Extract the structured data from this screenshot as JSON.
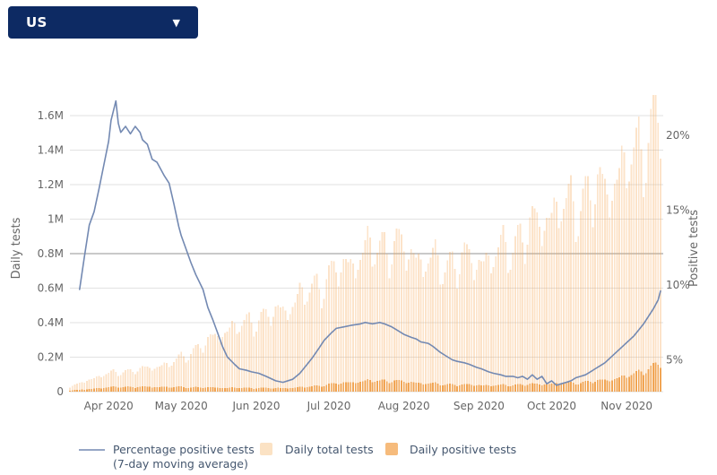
{
  "dropdown": {
    "value": "US"
  },
  "colors": {
    "navy": "#0d2a63",
    "line": "#7389b2",
    "bar_total": "#f7a758",
    "bar_total_opacity": 0.32,
    "bar_positive": "#ee9537",
    "bar_positive_opacity": 0.8,
    "legend_total_swatch": "#fbe2c4",
    "legend_positive_swatch": "#f6bb7c",
    "axis_text": "#666666",
    "legend_text": "#45576f",
    "grid": "#e2e2e2",
    "grid_emphasis": "#c9c9c9"
  },
  "legend": {
    "line_label_1": "Percentage positive tests",
    "line_label_2": "(7-day moving average)",
    "total_label": "Daily total tests",
    "positive_label": "Daily positive tests"
  },
  "chart_data": {
    "type": "combo",
    "x": {
      "start": "2020-03-16",
      "end": "2020-11-15",
      "total_days": 245,
      "tick_labels": [
        "Apr 2020",
        "May 2020",
        "Jun 2020",
        "Jul 2020",
        "Aug 2020",
        "Sep 2020",
        "Oct 2020",
        "Nov 2020"
      ],
      "tick_day_offsets": [
        16,
        46,
        77,
        107,
        138,
        169,
        199,
        230
      ]
    },
    "left_axis": {
      "label": "Daily tests",
      "tick_labels": [
        "0",
        "0.2M",
        "0.4M",
        "0.6M",
        "0.8M",
        "1M",
        "1.2M",
        "1.4M",
        "1.6M"
      ],
      "tick_values_millions": [
        0,
        0.2,
        0.4,
        0.6,
        0.8,
        1.0,
        1.2,
        1.4,
        1.6
      ],
      "range_millions": [
        0,
        1.75
      ]
    },
    "right_axis": {
      "label": "Positive tests",
      "tick_labels": [
        "5%",
        "10%",
        "15%",
        "20%"
      ],
      "tick_values_pct": [
        5,
        10,
        15,
        20
      ],
      "range_pct": [
        2.9,
        23
      ]
    },
    "grid": {
      "emphasis_value_millions": 0.8
    },
    "weekly_pattern": [
      0.9,
      1.0,
      1.05,
      1.08,
      1.1,
      1.0,
      0.84
    ],
    "series": [
      {
        "name": "Daily total tests",
        "type": "bar",
        "sampling": "weekly-anchor-millions-from-2020-03-16",
        "values": [
          0.025,
          0.065,
          0.1,
          0.115,
          0.125,
          0.145,
          0.165,
          0.22,
          0.28,
          0.35,
          0.38,
          0.42,
          0.45,
          0.5,
          0.58,
          0.64,
          0.72,
          0.78,
          0.84,
          0.85,
          0.81,
          0.76,
          0.73,
          0.76,
          0.76,
          0.78,
          0.85,
          0.92,
          1.02,
          1.06,
          1.1,
          1.15,
          1.22,
          1.32,
          1.47,
          1.62
        ]
      },
      {
        "name": "Daily positive tests",
        "type": "bar",
        "sampling": "weekly-anchor-millions-from-2020-03-16",
        "values": [
          0.006,
          0.014,
          0.022,
          0.028,
          0.027,
          0.028,
          0.027,
          0.026,
          0.024,
          0.023,
          0.022,
          0.021,
          0.02,
          0.022,
          0.028,
          0.038,
          0.05,
          0.058,
          0.064,
          0.063,
          0.056,
          0.048,
          0.043,
          0.04,
          0.039,
          0.036,
          0.038,
          0.042,
          0.045,
          0.047,
          0.052,
          0.06,
          0.072,
          0.093,
          0.128,
          0.17
        ]
      },
      {
        "name": "Percentage positive tests (7-day moving average)",
        "type": "line",
        "points_day_pct": [
          [
            4,
            9.7
          ],
          [
            6,
            11.9
          ],
          [
            8,
            14.0
          ],
          [
            10,
            14.9
          ],
          [
            12,
            16.4
          ],
          [
            14,
            18.0
          ],
          [
            16,
            19.6
          ],
          [
            17,
            21.0
          ],
          [
            19,
            22.3
          ],
          [
            20,
            20.8
          ],
          [
            21,
            20.2
          ],
          [
            23,
            20.6
          ],
          [
            25,
            20.1
          ],
          [
            27,
            20.6
          ],
          [
            29,
            20.2
          ],
          [
            30,
            19.7
          ],
          [
            32,
            19.4
          ],
          [
            34,
            18.4
          ],
          [
            36,
            18.2
          ],
          [
            39,
            17.3
          ],
          [
            41,
            16.8
          ],
          [
            43,
            15.4
          ],
          [
            45,
            13.9
          ],
          [
            46,
            13.3
          ],
          [
            48,
            12.4
          ],
          [
            50,
            11.5
          ],
          [
            52,
            10.7
          ],
          [
            55,
            9.7
          ],
          [
            57,
            8.5
          ],
          [
            59,
            7.7
          ],
          [
            61,
            6.8
          ],
          [
            63,
            5.9
          ],
          [
            65,
            5.2
          ],
          [
            68,
            4.7
          ],
          [
            70,
            4.4
          ],
          [
            73,
            4.3
          ],
          [
            75,
            4.2
          ],
          [
            78,
            4.1
          ],
          [
            81,
            3.9
          ],
          [
            85,
            3.6
          ],
          [
            88,
            3.5
          ],
          [
            92,
            3.7
          ],
          [
            95,
            4.1
          ],
          [
            98,
            4.7
          ],
          [
            100,
            5.1
          ],
          [
            103,
            5.8
          ],
          [
            105,
            6.3
          ],
          [
            108,
            6.8
          ],
          [
            110,
            7.1
          ],
          [
            113,
            7.2
          ],
          [
            116,
            7.3
          ],
          [
            120,
            7.4
          ],
          [
            122,
            7.5
          ],
          [
            125,
            7.4
          ],
          [
            128,
            7.5
          ],
          [
            130,
            7.4
          ],
          [
            133,
            7.2
          ],
          [
            135,
            7.0
          ],
          [
            138,
            6.7
          ],
          [
            141,
            6.5
          ],
          [
            143,
            6.4
          ],
          [
            145,
            6.2
          ],
          [
            148,
            6.1
          ],
          [
            150,
            5.9
          ],
          [
            153,
            5.5
          ],
          [
            155,
            5.3
          ],
          [
            158,
            5.0
          ],
          [
            160,
            4.9
          ],
          [
            163,
            4.8
          ],
          [
            165,
            4.7
          ],
          [
            168,
            4.5
          ],
          [
            170,
            4.4
          ],
          [
            173,
            4.2
          ],
          [
            175,
            4.1
          ],
          [
            178,
            4.0
          ],
          [
            180,
            3.9
          ],
          [
            183,
            3.9
          ],
          [
            185,
            3.8
          ],
          [
            187,
            3.9
          ],
          [
            189,
            3.7
          ],
          [
            191,
            4.0
          ],
          [
            193,
            3.7
          ],
          [
            195,
            3.9
          ],
          [
            197,
            3.4
          ],
          [
            199,
            3.6
          ],
          [
            201,
            3.3
          ],
          [
            203,
            3.4
          ],
          [
            205,
            3.5
          ],
          [
            207,
            3.6
          ],
          [
            209,
            3.8
          ],
          [
            211,
            3.9
          ],
          [
            213,
            4.0
          ],
          [
            215,
            4.2
          ],
          [
            217,
            4.4
          ],
          [
            219,
            4.6
          ],
          [
            221,
            4.8
          ],
          [
            223,
            5.1
          ],
          [
            225,
            5.4
          ],
          [
            227,
            5.7
          ],
          [
            229,
            6.0
          ],
          [
            231,
            6.3
          ],
          [
            233,
            6.6
          ],
          [
            235,
            7.0
          ],
          [
            237,
            7.4
          ],
          [
            239,
            7.9
          ],
          [
            241,
            8.4
          ],
          [
            243,
            9.0
          ],
          [
            244,
            9.6
          ]
        ]
      }
    ]
  }
}
